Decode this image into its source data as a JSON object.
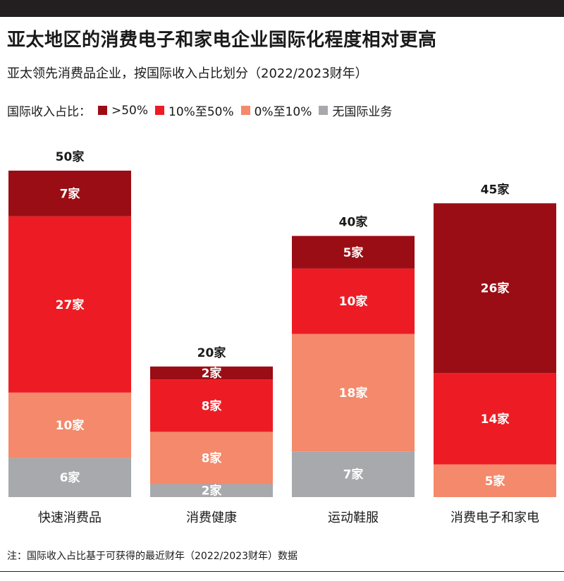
{
  "header": {
    "title": "亚太地区的消费电子和家电企业国际化程度相对更高",
    "subtitle": "亚太领先消费品企业，按国际收入占比划分（2022/2023财年）"
  },
  "legend": {
    "label": "国际收入占比：",
    "items": [
      {
        "label": ">50%",
        "color": "#9b0d14"
      },
      {
        "label": "10%至50%",
        "color": "#ed1c24"
      },
      {
        "label": "0%至10%",
        "color": "#f4896b"
      },
      {
        "label": "无国际业务",
        "color": "#a7a9ac"
      }
    ]
  },
  "chart_data": {
    "type": "bar",
    "stacked": true,
    "categories": [
      "快速消费品",
      "消费健康",
      "运动鞋服",
      "消费电子和家电"
    ],
    "series": [
      {
        "name": "无国际业务",
        "values": [
          6,
          2,
          7,
          0
        ],
        "labels": [
          "6家",
          "2家",
          "7家",
          ""
        ],
        "color": "#a7a9ac"
      },
      {
        "name": "0%至10%",
        "values": [
          10,
          8,
          18,
          5
        ],
        "labels": [
          "10家",
          "8家",
          "18家",
          "5家"
        ],
        "color": "#f4896b"
      },
      {
        "name": "10%至50%",
        "values": [
          27,
          8,
          10,
          14
        ],
        "labels": [
          "27家",
          "8家",
          "10家",
          "14家"
        ],
        "color": "#ed1c24"
      },
      {
        "name": ">50%",
        "values": [
          7,
          2,
          5,
          26
        ],
        "labels": [
          "7家",
          "2家",
          "5家",
          "26家"
        ],
        "color": "#9b0d14"
      }
    ],
    "totals": [
      "50家",
      "20家",
      "40家",
      "45家"
    ],
    "ylim": [
      0,
      50
    ],
    "grid": false
  },
  "footer": {
    "note": "注：国际收入占比基于可获得的最近财年（2022/2023财年）数据"
  }
}
